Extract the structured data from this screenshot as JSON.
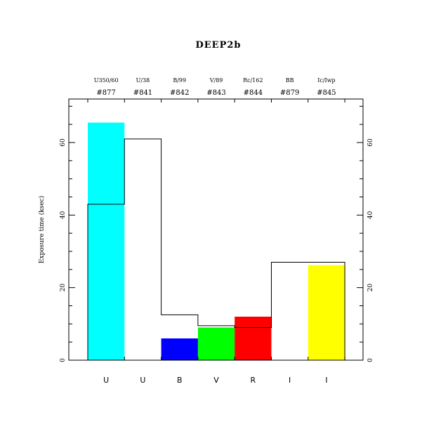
{
  "chart_data": {
    "type": "bar",
    "title": "DEEP2b",
    "ylabel": "Exposure time (ksec)",
    "xlabel": "",
    "ylim": [
      0,
      72
    ],
    "yticks": [
      0,
      20,
      40,
      60
    ],
    "categories": [
      "U",
      "U",
      "B",
      "V",
      "R",
      "I",
      "I"
    ],
    "filters": [
      "U350/60",
      "U/38",
      "B/99",
      "V/89",
      "Rc/162",
      "BB",
      "Ic/Iwp"
    ],
    "filter_ids": [
      "#877",
      "#841",
      "#842",
      "#843",
      "#844",
      "#879",
      "#845"
    ],
    "series": [
      {
        "values": [
          65.5,
          0,
          6,
          9,
          12,
          0,
          26.2
        ],
        "colors": [
          "#00ffff",
          "#ffffff",
          "#0000ff",
          "#00ff00",
          "#ff0000",
          "#ffffff",
          "#ffff00"
        ]
      },
      {
        "values": [
          43,
          61,
          12.5,
          9.5,
          9,
          27,
          27
        ]
      }
    ],
    "grid": false,
    "legend": "none"
  }
}
